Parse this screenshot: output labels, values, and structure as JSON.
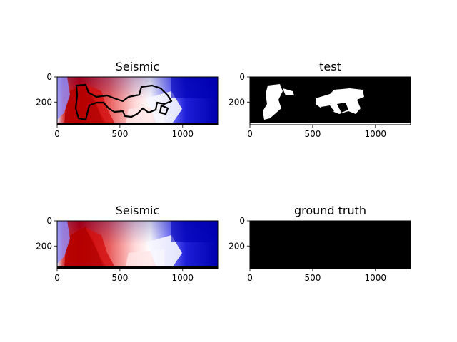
{
  "figure": {
    "background": "#ffffff"
  },
  "chart_data": [
    {
      "type": "heatmap",
      "title": "Seismic",
      "xlim": [
        0,
        1280
      ],
      "ylim": [
        380,
        0
      ],
      "xticks": [
        0,
        500,
        1000
      ],
      "yticks": [
        0,
        200
      ],
      "colormap": "seismic",
      "overlay": "black contour outline of predicted region",
      "background_colors": [
        "#0000c8",
        "#ffffff",
        "#cc0000"
      ]
    },
    {
      "type": "heatmap",
      "title": "test",
      "xlim": [
        0,
        1280
      ],
      "ylim": [
        380,
        0
      ],
      "xticks": [
        0,
        500,
        1000
      ],
      "yticks": [
        0,
        200
      ],
      "colormap": "binary mask (black=0, white=1)"
    },
    {
      "type": "heatmap",
      "title": "Seismic",
      "xlim": [
        0,
        1280
      ],
      "ylim": [
        380,
        0
      ],
      "xticks": [
        0,
        500,
        1000
      ],
      "yticks": [
        0,
        200
      ],
      "colormap": "seismic"
    },
    {
      "type": "heatmap",
      "title": "ground truth",
      "xlim": [
        0,
        1280
      ],
      "ylim": [
        380,
        0
      ],
      "xticks": [
        0,
        500,
        1000
      ],
      "yticks": [
        0,
        200
      ],
      "colormap": "binary mask (all zero, black)"
    }
  ]
}
